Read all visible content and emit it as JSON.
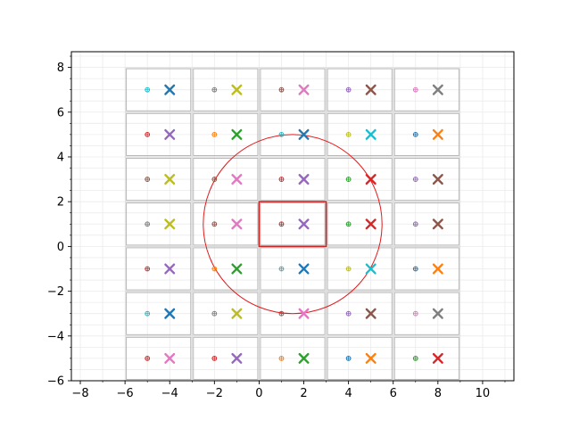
{
  "chart_data": {
    "type": "scatter",
    "title": "",
    "xlabel": "",
    "ylabel": "",
    "xlim": [
      -8.4,
      11.4
    ],
    "ylim": [
      -6,
      8.7
    ],
    "x_ticks": [
      -8,
      -6,
      -4,
      -2,
      0,
      2,
      4,
      6,
      8,
      10
    ],
    "y_ticks": [
      -6,
      -4,
      -2,
      0,
      2,
      4,
      6,
      8
    ],
    "grid": true,
    "minor_grid": true,
    "grid_color": "#ebebeb",
    "columns": [
      -5,
      -2,
      1,
      4,
      7
    ],
    "rows": [
      7,
      5,
      3,
      1,
      -1,
      -3,
      -5
    ],
    "cell_width": 3,
    "cell_height": 2,
    "cell_border_color": "#b0b0b0",
    "highlight_cell": {
      "x": [
        0,
        3
      ],
      "y": [
        0,
        2
      ],
      "color": "#c62828"
    },
    "circle": {
      "center": [
        1.5,
        1
      ],
      "radius": 4,
      "color": "#e31a1c"
    },
    "palette": [
      "#1f77b4",
      "#ff7f0e",
      "#2ca02c",
      "#d62728",
      "#9467bd",
      "#8c564b",
      "#e377c2",
      "#7f7f7f",
      "#bcbd22",
      "#17becf"
    ],
    "small_marker_dx": 0,
    "large_marker_dx": 1,
    "small_marker_colors": [
      [
        "#17becf",
        "#7f7f7f",
        "#8c564b",
        "#9467bd",
        "#e377c2"
      ],
      [
        "#d62728",
        "#ff7f0e",
        "#17becf",
        "#bcbd22",
        "#1f77b4"
      ],
      [
        "#8c564b",
        "#8c564b",
        "#d62728",
        "#2ca02c",
        "#9467bd"
      ],
      [
        "#7f7f7f",
        "#8c564b",
        "#d62728",
        "#2ca02c",
        "#9467bd"
      ],
      [
        "#d62728",
        "#ff7f0e",
        "#17becf",
        "#bcbd22",
        "#1f77b4"
      ],
      [
        "#17becf",
        "#7f7f7f",
        "#8c564b",
        "#9467bd",
        "#e377c2"
      ],
      [
        "#d62728",
        "#d62728",
        "#ff7f0e",
        "#1f77b4",
        "#2ca02c"
      ]
    ],
    "large_marker_colors": [
      [
        "#1f77b4",
        "#bcbd22",
        "#e377c2",
        "#8c564b",
        "#7f7f7f"
      ],
      [
        "#9467bd",
        "#2ca02c",
        "#1f77b4",
        "#17becf",
        "#ff7f0e"
      ],
      [
        "#bcbd22",
        "#e377c2",
        "#9467bd",
        "#d62728",
        "#8c564b"
      ],
      [
        "#bcbd22",
        "#e377c2",
        "#9467bd",
        "#d62728",
        "#8c564b"
      ],
      [
        "#9467bd",
        "#2ca02c",
        "#1f77b4",
        "#17becf",
        "#ff7f0e"
      ],
      [
        "#1f77b4",
        "#bcbd22",
        "#e377c2",
        "#8c564b",
        "#7f7f7f"
      ],
      [
        "#e377c2",
        "#9467bd",
        "#2ca02c",
        "#ff7f0e",
        "#d62728"
      ]
    ]
  }
}
